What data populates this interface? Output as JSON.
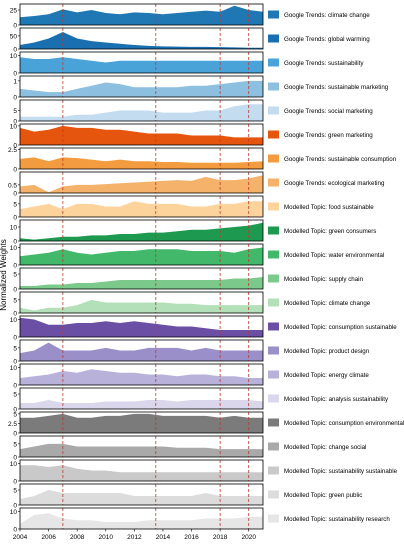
{
  "chart_data": {
    "type": "area",
    "ylabel": "Normalized Weights",
    "xlim": [
      2004,
      2021
    ],
    "x_ticks": [
      2004,
      2006,
      2008,
      2010,
      2012,
      2014,
      2016,
      2018,
      2020
    ],
    "vlines": [
      2007,
      2013.5,
      2018,
      2020
    ],
    "vline_color": "#c0392b",
    "x": [
      2004,
      2005,
      2006,
      2007,
      2008,
      2009,
      2010,
      2011,
      2012,
      2013,
      2014,
      2015,
      2016,
      2017,
      2018,
      2019,
      2020,
      2021
    ],
    "series": [
      {
        "name": "Google Trends: climate change",
        "color": "#1f77b4",
        "ylim": [
          0,
          35
        ],
        "y_ticks": [
          0,
          25
        ],
        "values": [
          13,
          15,
          18,
          26,
          21,
          25,
          20,
          18,
          21,
          20,
          18,
          20,
          22,
          24,
          22,
          32,
          25,
          22
        ]
      },
      {
        "name": "Google Trends: global warming",
        "color": "#1a6fb0",
        "ylim": [
          0,
          80
        ],
        "y_ticks": [
          0,
          50
        ],
        "values": [
          15,
          25,
          40,
          65,
          40,
          30,
          25,
          20,
          15,
          12,
          10,
          9,
          8,
          8,
          7,
          6,
          5,
          5
        ]
      },
      {
        "name": "Google Trends: sustainability",
        "color": "#4aa3d8",
        "ylim": [
          0,
          12
        ],
        "y_ticks": [
          0,
          10
        ],
        "values": [
          9,
          8,
          8,
          9,
          8,
          7,
          6,
          7,
          7,
          7,
          7,
          7,
          7,
          7,
          7,
          7,
          7,
          7
        ]
      },
      {
        "name": "Google Trends: sustainable marketing",
        "color": "#8cbfe0",
        "ylim": [
          0,
          1.3
        ],
        "y_ticks": [
          0,
          1
        ],
        "values": [
          0.5,
          0.4,
          0.3,
          0.3,
          0.5,
          0.7,
          0.9,
          0.8,
          0.6,
          0.6,
          0.6,
          0.6,
          0.7,
          0.7,
          0.8,
          0.9,
          1.0,
          1.0
        ]
      },
      {
        "name": "Google Trends: social marketing",
        "color": "#c3dcf0",
        "ylim": [
          0,
          10
        ],
        "y_ticks": [
          0,
          5
        ],
        "values": [
          2,
          2,
          2,
          2,
          3,
          3,
          4,
          5,
          5,
          5,
          4,
          4,
          4,
          5,
          5,
          7,
          8,
          8
        ]
      },
      {
        "name": "Google Trends: green marketing",
        "color": "#e6550d",
        "ylim": [
          0,
          11
        ],
        "y_ticks": [
          0,
          10
        ],
        "values": [
          9,
          7,
          8,
          10,
          9,
          9,
          8,
          8,
          7,
          6,
          6,
          6,
          5,
          5,
          5,
          4,
          4,
          4
        ]
      },
      {
        "name": "Google Trends: sustainable consumption",
        "color": "#f39c3f",
        "ylim": [
          0,
          2.7
        ],
        "y_ticks": [
          0,
          2.5
        ],
        "values": [
          1.3,
          1.5,
          1.0,
          1.5,
          1.4,
          1.2,
          1.0,
          1.2,
          1.0,
          1.0,
          0.9,
          0.9,
          0.8,
          0.8,
          0.8,
          0.8,
          0.9,
          1.0
        ]
      },
      {
        "name": "Google Trends: ecological marketing",
        "color": "#f5b26b",
        "ylim": [
          0,
          1.3
        ],
        "y_ticks": [
          0.0,
          0.5
        ],
        "values": [
          0.4,
          0.5,
          0.05,
          0.4,
          0.5,
          0.5,
          0.55,
          0.6,
          0.65,
          0.7,
          0.75,
          0.8,
          0.75,
          1.0,
          0.8,
          0.8,
          0.9,
          1.1
        ]
      },
      {
        "name": "Modelled Topic: food sustainable",
        "color": "#fdd39c",
        "ylim": [
          0,
          8
        ],
        "y_ticks": [
          0,
          5
        ],
        "values": [
          3,
          4,
          5,
          3,
          5,
          5,
          4,
          4,
          6,
          5,
          5,
          5,
          4,
          4,
          5,
          5,
          6,
          6
        ]
      },
      {
        "name": "Modelled Topic: green consumers",
        "color": "#1e9a50",
        "ylim": [
          0,
          15
        ],
        "y_ticks": [
          0,
          10
        ],
        "values": [
          2,
          1,
          2,
          3,
          3,
          4,
          4,
          5,
          5,
          6,
          6,
          7,
          8,
          8,
          9,
          10,
          11,
          13
        ]
      },
      {
        "name": "Modelled Topic: water environmental",
        "color": "#41b86a",
        "ylim": [
          0,
          12
        ],
        "y_ticks": [
          0,
          10
        ],
        "values": [
          5,
          6,
          7,
          9,
          7,
          6,
          7,
          8,
          8,
          9,
          9,
          9,
          8,
          8,
          8,
          7,
          9,
          10
        ]
      },
      {
        "name": "Modelled Topic: supply chain",
        "color": "#7cc98c",
        "ylim": [
          0,
          7
        ],
        "y_ticks": [
          0,
          5
        ],
        "values": [
          1,
          1,
          1.5,
          1.5,
          2,
          2,
          2.5,
          3,
          3,
          3,
          3,
          3,
          3,
          3,
          3,
          3.5,
          3.5,
          4
        ]
      },
      {
        "name": "Modelled Topic: climate change",
        "color": "#b3e0b8",
        "ylim": [
          0,
          8
        ],
        "y_ticks": [
          0,
          5
        ],
        "values": [
          2,
          1,
          2,
          2,
          3,
          5,
          4,
          4,
          4,
          4,
          4,
          3.5,
          3.5,
          3,
          3,
          3,
          3,
          3
        ]
      },
      {
        "name": "Modelled Topic: consumption sustainable",
        "color": "#6a4fa5",
        "ylim": [
          0,
          12
        ],
        "y_ticks": [
          0,
          10
        ],
        "values": [
          11,
          10,
          7,
          7,
          8,
          8,
          9,
          8,
          9,
          8,
          7,
          6,
          6,
          5,
          4,
          4,
          4,
          4
        ]
      },
      {
        "name": "Modelled Topic: product design",
        "color": "#9a8fc8",
        "ylim": [
          0,
          8
        ],
        "y_ticks": [
          0,
          5
        ],
        "values": [
          3,
          4,
          7,
          4,
          4,
          4,
          5,
          4,
          4,
          5,
          5,
          5,
          4,
          5,
          4,
          4,
          4,
          4
        ]
      },
      {
        "name": "Modelled Topic: energy climate",
        "color": "#b8b2da",
        "ylim": [
          0,
          12
        ],
        "y_ticks": [
          0,
          10
        ],
        "values": [
          4,
          5,
          6,
          8,
          7,
          9,
          8,
          7,
          7,
          6,
          6,
          5,
          6,
          6,
          5,
          5,
          4,
          4
        ]
      },
      {
        "name": "Modelled Topic: analysis sustainability",
        "color": "#dad6ec",
        "ylim": [
          0,
          7
        ],
        "y_ticks": [
          0,
          5
        ],
        "values": [
          2,
          2,
          3,
          2,
          2,
          2,
          2.5,
          2.5,
          2.5,
          3,
          3,
          2.5,
          3,
          3,
          3,
          3,
          3,
          2.5
        ]
      },
      {
        "name": "Modelled Topic: consumption environmental",
        "color": "#7b7b7b",
        "ylim": [
          0,
          5.5
        ],
        "y_ticks": [
          0,
          2.5,
          5
        ],
        "values": [
          4,
          4,
          4.5,
          5,
          4,
          4,
          4.5,
          4.5,
          5,
          5,
          4.5,
          4.5,
          4.5,
          4.5,
          4,
          4.5,
          4,
          4
        ]
      },
      {
        "name": "Modelled Topic: change social",
        "color": "#a9a9a9",
        "ylim": [
          0,
          8
        ],
        "y_ticks": [
          0,
          5
        ],
        "values": [
          3,
          4,
          5,
          5,
          4,
          4,
          4,
          4,
          4,
          4,
          4,
          3.5,
          3.5,
          3.5,
          3,
          3,
          3,
          3
        ]
      },
      {
        "name": "Modelled Topic: sustainability sustainable",
        "color": "#c9c9c9",
        "ylim": [
          0,
          12
        ],
        "y_ticks": [
          0,
          10
        ],
        "values": [
          9,
          9,
          8,
          9,
          7,
          6,
          6,
          5,
          5,
          5,
          5,
          5,
          5,
          5,
          5,
          5,
          5,
          5
        ]
      },
      {
        "name": "Modelled Topic: green public",
        "color": "#dcdcdc",
        "ylim": [
          0,
          7
        ],
        "y_ticks": [
          0,
          5
        ],
        "values": [
          2,
          3,
          5,
          4,
          4,
          4,
          4,
          4,
          3,
          3,
          3,
          3,
          3,
          4,
          3,
          3,
          3,
          3
        ]
      },
      {
        "name": "Modelled Topic: sustainability research",
        "color": "#e6e6e6",
        "ylim": [
          0,
          12
        ],
        "y_ticks": [
          0,
          10
        ],
        "values": [
          3,
          8,
          9,
          6,
          5,
          5,
          4,
          4,
          4,
          5,
          5,
          5,
          5,
          6,
          6,
          6,
          7,
          7
        ]
      }
    ]
  }
}
